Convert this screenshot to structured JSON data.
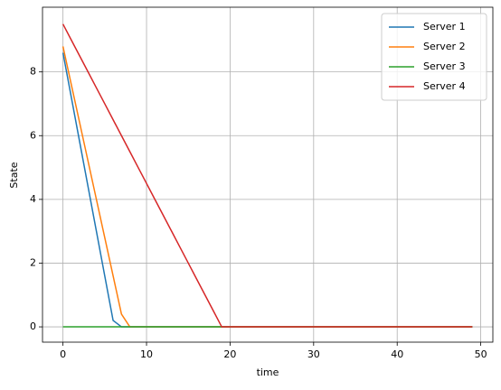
{
  "chart_data": {
    "type": "line",
    "x_label": "time",
    "y_label": "State",
    "x": [
      0,
      1,
      2,
      3,
      4,
      5,
      6,
      7,
      8,
      9,
      10,
      11,
      12,
      13,
      14,
      15,
      16,
      17,
      18,
      19,
      20,
      21,
      22,
      23,
      24,
      25,
      26,
      27,
      28,
      29,
      30,
      31,
      32,
      33,
      34,
      35,
      36,
      37,
      38,
      39,
      40,
      41,
      42,
      43,
      44,
      45,
      46,
      47,
      48,
      49
    ],
    "series": [
      {
        "name": "Server 1",
        "color": "#1f77b4",
        "values": [
          8.6,
          7.2,
          5.8,
          4.4,
          3.0,
          1.6,
          0.2,
          0,
          0,
          0,
          0,
          0,
          0,
          0,
          0,
          0,
          0,
          0,
          0,
          0,
          0,
          0,
          0,
          0,
          0,
          0,
          0,
          0,
          0,
          0,
          0,
          0,
          0,
          0,
          0,
          0,
          0,
          0,
          0,
          0,
          0,
          0,
          0,
          0,
          0,
          0,
          0,
          0,
          0,
          0
        ]
      },
      {
        "name": "Server 2",
        "color": "#ff7f0e",
        "values": [
          8.8,
          7.6,
          6.4,
          5.2,
          4.0,
          2.8,
          1.6,
          0.4,
          0,
          0,
          0,
          0,
          0,
          0,
          0,
          0,
          0,
          0,
          0,
          0,
          0,
          0,
          0,
          0,
          0,
          0,
          0,
          0,
          0,
          0,
          0,
          0,
          0,
          0,
          0,
          0,
          0,
          0,
          0,
          0,
          0,
          0,
          0,
          0,
          0,
          0,
          0,
          0,
          0,
          0
        ]
      },
      {
        "name": "Server 3",
        "color": "#2ca02c",
        "values": [
          0,
          0,
          0,
          0,
          0,
          0,
          0,
          0,
          0,
          0,
          0,
          0,
          0,
          0,
          0,
          0,
          0,
          0,
          0,
          0,
          0,
          0,
          0,
          0,
          0,
          0,
          0,
          0,
          0,
          0,
          0,
          0,
          0,
          0,
          0,
          0,
          0,
          0,
          0,
          0,
          0,
          0,
          0,
          0,
          0,
          0,
          0,
          0,
          0,
          0
        ]
      },
      {
        "name": "Server 4",
        "color": "#d62728",
        "values": [
          9.5,
          9.0,
          8.5,
          8.0,
          7.5,
          7.0,
          6.5,
          6.0,
          5.5,
          5.0,
          4.5,
          4.0,
          3.5,
          3.0,
          2.5,
          2.0,
          1.5,
          1.0,
          0.5,
          0,
          0,
          0,
          0,
          0,
          0,
          0,
          0,
          0,
          0,
          0,
          0,
          0,
          0,
          0,
          0,
          0,
          0,
          0,
          0,
          0,
          0,
          0,
          0,
          0,
          0,
          0,
          0,
          0,
          0,
          0
        ]
      }
    ],
    "xlim": [
      -2.45,
      51.45
    ],
    "xticks": [
      0,
      10,
      20,
      30,
      40,
      50
    ],
    "ylim": [
      -0.48,
      10.03
    ],
    "yticks": [
      0,
      2,
      4,
      6,
      8
    ],
    "grid": true,
    "legend": "upper right"
  }
}
